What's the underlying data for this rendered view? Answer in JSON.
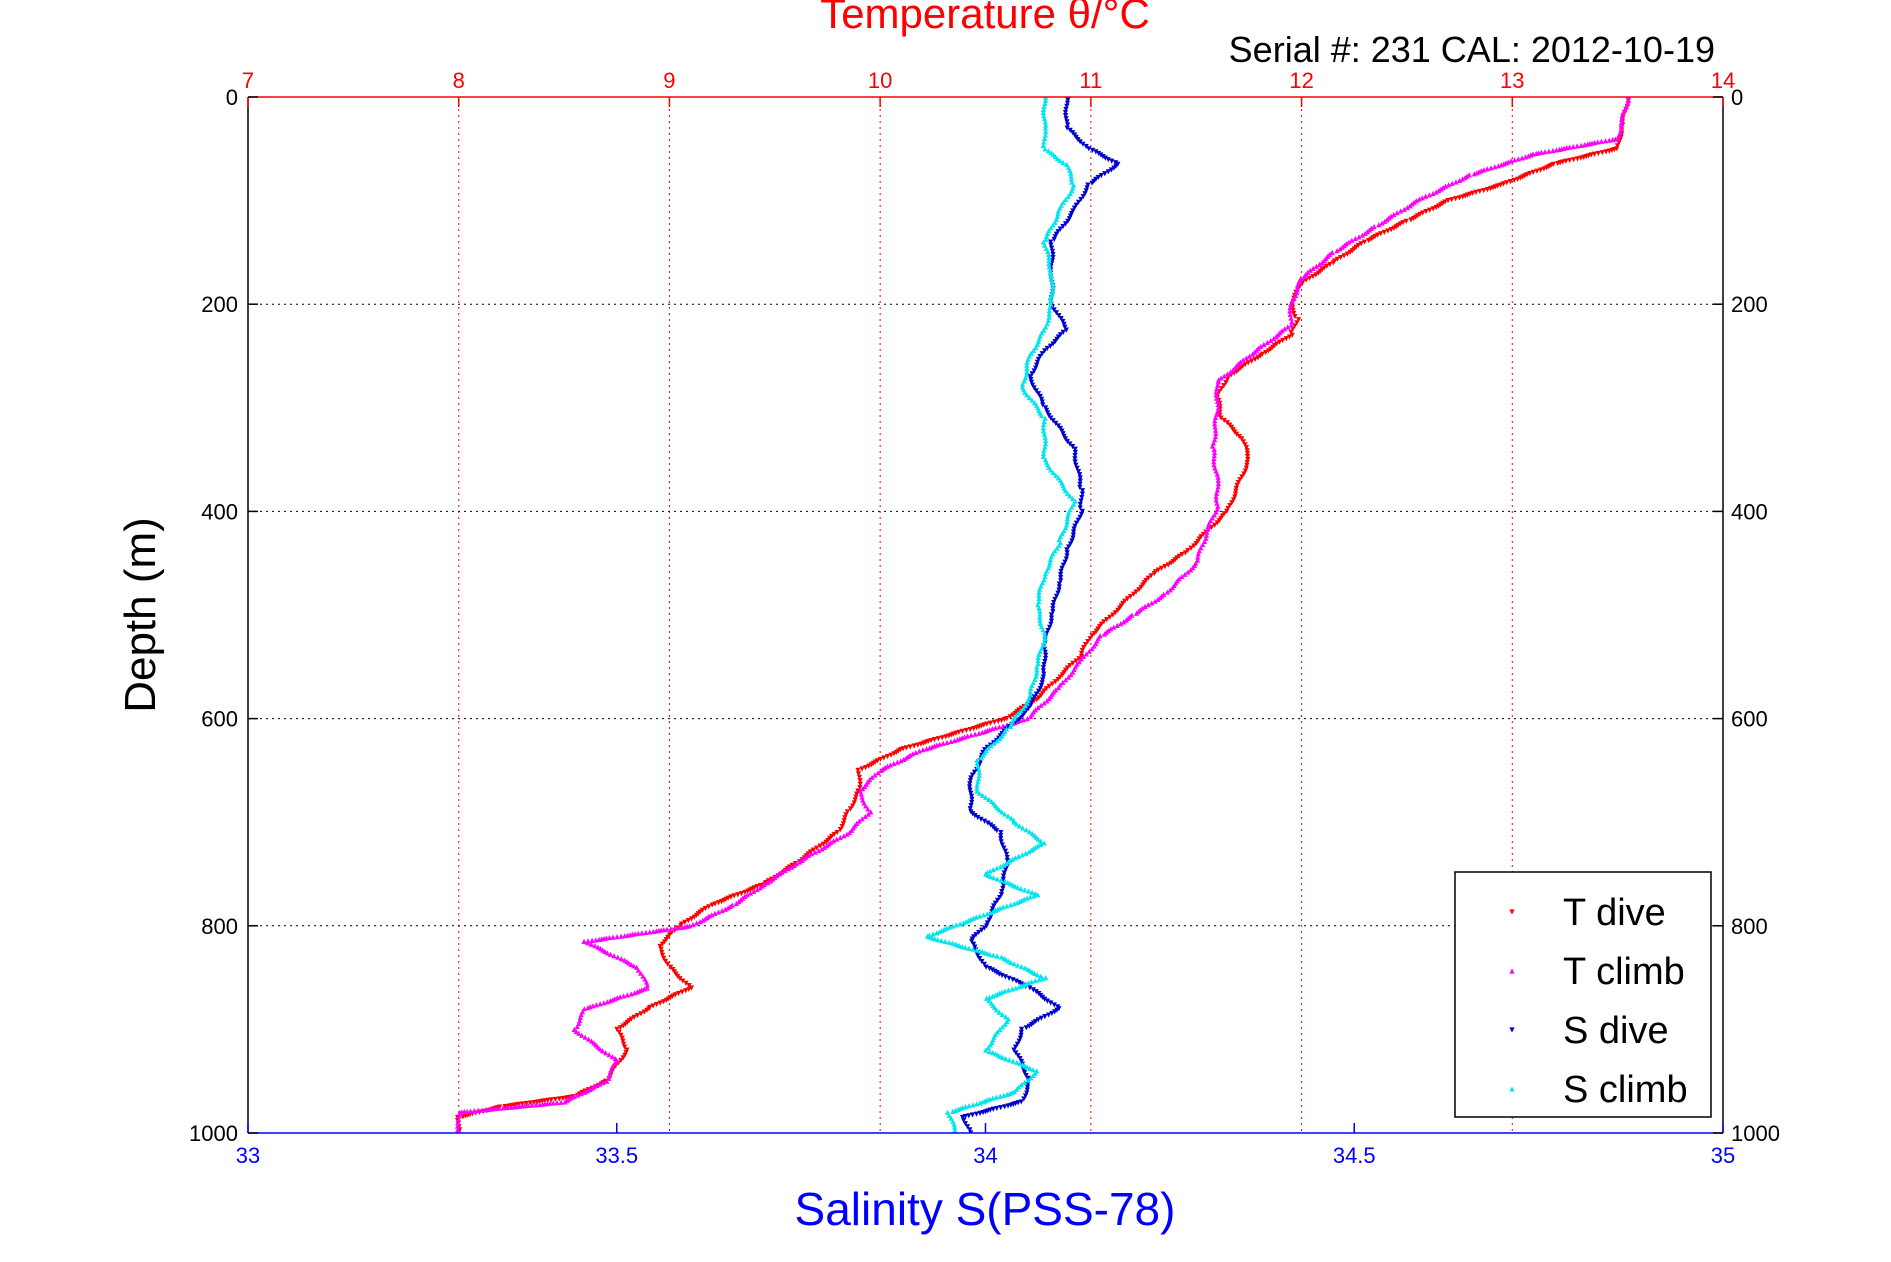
{
  "chart_data": {
    "type": "scatter",
    "title": "Temperature θ/°C",
    "subtitle": "Serial #: 231   CAL: 2012-10-19",
    "xlabel": "Salinity S(PSS-78)",
    "ylabel": "Depth (m)",
    "x_top": {
      "label": "Temperature θ/°C",
      "range": [
        7,
        14
      ],
      "ticks": [
        "7",
        "8",
        "9",
        "10",
        "11",
        "12",
        "13",
        "14"
      ],
      "color": "#ff0000"
    },
    "x_bottom": {
      "label": "Salinity S(PSS-78)",
      "range": [
        33,
        35
      ],
      "ticks": [
        "33",
        "33.5",
        "34",
        "34.5",
        "35"
      ],
      "color": "#0000ff"
    },
    "y": {
      "range": [
        0,
        1000
      ],
      "reversed": true,
      "ticks": [
        "0",
        "200",
        "400",
        "600",
        "800",
        "1000"
      ]
    },
    "grid": true,
    "legend": "bottom-right",
    "series": [
      {
        "name": "T dive",
        "axis": "top",
        "color": "#ff0000",
        "marker": "triangle-down",
        "points": [
          [
            13.55,
            0
          ],
          [
            13.52,
            30
          ],
          [
            13.5,
            50
          ],
          [
            13.2,
            65
          ],
          [
            12.95,
            85
          ],
          [
            12.7,
            100
          ],
          [
            12.5,
            120
          ],
          [
            12.3,
            140
          ],
          [
            12.15,
            160
          ],
          [
            12.0,
            180
          ],
          [
            11.95,
            200
          ],
          [
            11.98,
            215
          ],
          [
            11.95,
            230
          ],
          [
            11.8,
            250
          ],
          [
            11.65,
            270
          ],
          [
            11.6,
            290
          ],
          [
            11.62,
            310
          ],
          [
            11.72,
            330
          ],
          [
            11.75,
            350
          ],
          [
            11.7,
            375
          ],
          [
            11.65,
            400
          ],
          [
            11.55,
            420
          ],
          [
            11.45,
            440
          ],
          [
            11.3,
            460
          ],
          [
            11.2,
            480
          ],
          [
            11.1,
            500
          ],
          [
            11.0,
            520
          ],
          [
            10.95,
            540
          ],
          [
            10.85,
            560
          ],
          [
            10.75,
            580
          ],
          [
            10.6,
            600
          ],
          [
            10.35,
            615
          ],
          [
            10.1,
            630
          ],
          [
            9.9,
            650
          ],
          [
            9.9,
            670
          ],
          [
            9.85,
            690
          ],
          [
            9.8,
            710
          ],
          [
            9.6,
            740
          ],
          [
            9.45,
            760
          ],
          [
            9.2,
            780
          ],
          [
            9.05,
            800
          ],
          [
            8.95,
            820
          ],
          [
            9.0,
            840
          ],
          [
            9.1,
            860
          ],
          [
            8.9,
            880
          ],
          [
            8.75,
            900
          ],
          [
            8.8,
            920
          ],
          [
            8.7,
            950
          ],
          [
            8.55,
            965
          ],
          [
            8.2,
            975
          ],
          [
            8.0,
            985
          ],
          [
            8.0,
            1000
          ]
        ]
      },
      {
        "name": "T climb",
        "axis": "top",
        "color": "#ff00ff",
        "marker": "triangle-up",
        "points": [
          [
            13.55,
            0
          ],
          [
            13.5,
            40
          ],
          [
            13.1,
            55
          ],
          [
            12.8,
            75
          ],
          [
            12.55,
            100
          ],
          [
            12.35,
            125
          ],
          [
            12.15,
            150
          ],
          [
            12.0,
            175
          ],
          [
            11.95,
            200
          ],
          [
            11.95,
            220
          ],
          [
            11.75,
            250
          ],
          [
            11.6,
            275
          ],
          [
            11.6,
            300
          ],
          [
            11.58,
            340
          ],
          [
            11.6,
            370
          ],
          [
            11.6,
            395
          ],
          [
            11.55,
            420
          ],
          [
            11.5,
            450
          ],
          [
            11.35,
            480
          ],
          [
            11.2,
            500
          ],
          [
            11.05,
            520
          ],
          [
            10.95,
            545
          ],
          [
            10.85,
            570
          ],
          [
            10.7,
            600
          ],
          [
            10.45,
            615
          ],
          [
            10.2,
            630
          ],
          [
            10.0,
            650
          ],
          [
            9.9,
            670
          ],
          [
            9.95,
            690
          ],
          [
            9.85,
            710
          ],
          [
            9.6,
            740
          ],
          [
            9.45,
            760
          ],
          [
            9.3,
            780
          ],
          [
            9.1,
            800
          ],
          [
            8.6,
            815
          ],
          [
            8.85,
            840
          ],
          [
            8.9,
            860
          ],
          [
            8.6,
            880
          ],
          [
            8.55,
            900
          ],
          [
            8.75,
            930
          ],
          [
            8.7,
            950
          ],
          [
            8.5,
            970
          ],
          [
            8.0,
            980
          ],
          [
            8.0,
            1000
          ]
        ]
      },
      {
        "name": "S dive",
        "axis": "bottom",
        "color": "#0000cc",
        "marker": "triangle-down",
        "points": [
          [
            34.11,
            0
          ],
          [
            34.11,
            30
          ],
          [
            34.14,
            50
          ],
          [
            34.18,
            65
          ],
          [
            34.14,
            85
          ],
          [
            34.12,
            110
          ],
          [
            34.09,
            140
          ],
          [
            34.09,
            170
          ],
          [
            34.09,
            200
          ],
          [
            34.11,
            225
          ],
          [
            34.08,
            245
          ],
          [
            34.06,
            270
          ],
          [
            34.08,
            300
          ],
          [
            34.12,
            340
          ],
          [
            34.13,
            380
          ],
          [
            34.13,
            400
          ],
          [
            34.11,
            440
          ],
          [
            34.1,
            470
          ],
          [
            34.09,
            500
          ],
          [
            34.08,
            530
          ],
          [
            34.08,
            560
          ],
          [
            34.06,
            590
          ],
          [
            34.03,
            610
          ],
          [
            34.0,
            630
          ],
          [
            33.98,
            660
          ],
          [
            33.98,
            690
          ],
          [
            34.02,
            710
          ],
          [
            34.03,
            740
          ],
          [
            34.02,
            770
          ],
          [
            34.0,
            800
          ],
          [
            33.98,
            815
          ],
          [
            34.0,
            840
          ],
          [
            34.06,
            860
          ],
          [
            34.1,
            880
          ],
          [
            34.05,
            900
          ],
          [
            34.04,
            920
          ],
          [
            34.06,
            950
          ],
          [
            34.05,
            970
          ],
          [
            33.97,
            985
          ],
          [
            33.98,
            1000
          ]
        ]
      },
      {
        "name": "S climb",
        "axis": "bottom",
        "color": "#00e5ee",
        "marker": "triangle-up",
        "points": [
          [
            34.08,
            0
          ],
          [
            34.08,
            30
          ],
          [
            34.08,
            50
          ],
          [
            34.11,
            65
          ],
          [
            34.12,
            85
          ],
          [
            34.1,
            110
          ],
          [
            34.08,
            140
          ],
          [
            34.09,
            170
          ],
          [
            34.09,
            200
          ],
          [
            34.08,
            225
          ],
          [
            34.06,
            250
          ],
          [
            34.05,
            280
          ],
          [
            34.08,
            310
          ],
          [
            34.08,
            350
          ],
          [
            34.12,
            390
          ],
          [
            34.1,
            430
          ],
          [
            34.08,
            460
          ],
          [
            34.07,
            490
          ],
          [
            34.08,
            520
          ],
          [
            34.07,
            550
          ],
          [
            34.06,
            580
          ],
          [
            34.03,
            610
          ],
          [
            33.99,
            640
          ],
          [
            33.99,
            670
          ],
          [
            34.04,
            700
          ],
          [
            34.08,
            720
          ],
          [
            34.0,
            750
          ],
          [
            34.07,
            770
          ],
          [
            33.92,
            810
          ],
          [
            34.02,
            830
          ],
          [
            34.08,
            850
          ],
          [
            34.0,
            870
          ],
          [
            34.03,
            890
          ],
          [
            34.0,
            920
          ],
          [
            34.07,
            940
          ],
          [
            34.04,
            960
          ],
          [
            33.95,
            980
          ],
          [
            33.96,
            1000
          ]
        ]
      }
    ]
  }
}
